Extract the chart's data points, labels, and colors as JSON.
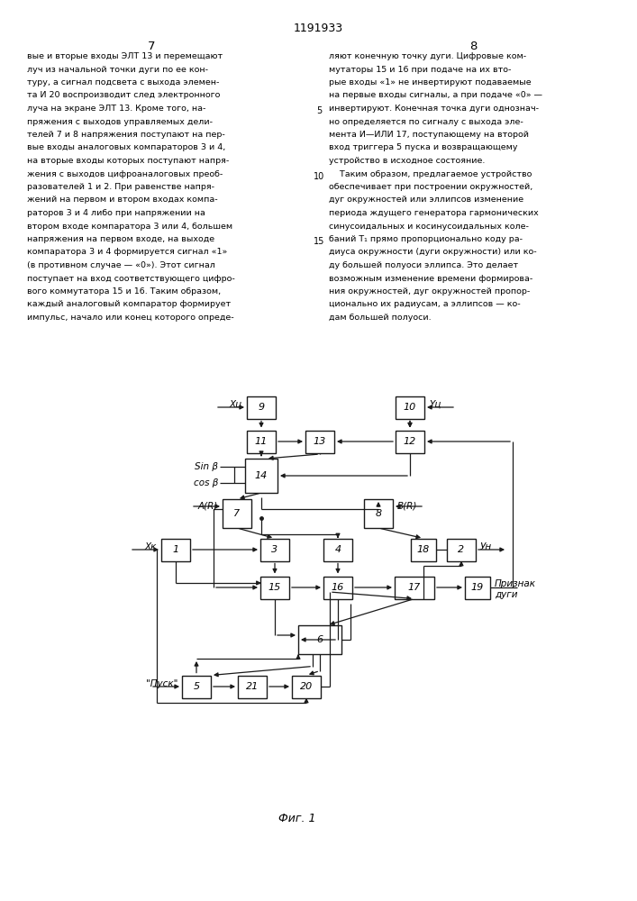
{
  "page_title": "1191933",
  "col_left_num": "7",
  "col_right_num": "8",
  "left_text_lines": [
    "вые и вторые входы ЭЛТ 13 и перемещают",
    "луч из начальной точки дуги по ее кон-",
    "туру, а сигнал подсвета с выхода элемен-",
    "та И 20 воспроизводит след электронного",
    "луча на экране ЭЛТ 13. Кроме того, на-",
    "пряжения с выходов управляемых дели-",
    "телей 7 и 8 напряжения поступают на пер-",
    "вые входы аналоговых компараторов 3 и 4,",
    "на вторые входы которых поступают напря-",
    "жения с выходов цифроаналоговых преоб-",
    "разователей 1 и 2. При равенстве напря-",
    "жений на первом и втором входах компа-",
    "раторов 3 и 4 либо при напряжении на",
    "втором входе компаратора 3 или 4, большем",
    "напряжения на первом входе, на выходе",
    "компаратора 3 и 4 формируется сигнал «1»",
    "(в противном случае — «0»). Этот сигнал",
    "поступает на вход соответствующего цифро-",
    "вого коммутатора 15 и 16. Таким образом,",
    "каждый аналоговый компаратор формирует",
    "импульс, начало или конец которого опреде-"
  ],
  "right_text_lines": [
    "ляют конечную точку дуги. Цифровые ком-",
    "мутаторы 15 и 16 при подаче на их вто-",
    "рые входы «1» не инвертируют подаваемые",
    "на первые входы сигналы, а при подаче «0» —",
    "инвертируют. Конечная точка дуги однознач-",
    "но определяется по сигналу с выхода эле-",
    "мента И—ИЛИ 17, поступающему на второй",
    "вход триггера 5 пуска и возвращающему",
    "устройство в исходное состояние.",
    "    Таким образом, предлагаемое устройство",
    "обеспечивает при построении окружностей,",
    "дуг окружностей или эллипсов изменение",
    "периода ждущего генератора гармонических",
    "синусоидальных и косинусоидальных коле-",
    "баний Т₁ прямо пропорционально коду ра-",
    "диуса окружности (дуги окружности) или ко-",
    "ду большей полуоси эллипса. Это делает",
    "возможным изменение времени формирова-",
    "ния окружностей, дуг окружностей пропор-",
    "ционально их радиусам, а эллипсов — ко-",
    "дам большей полуоси."
  ],
  "line_nums": [
    [
      "5",
      5
    ],
    [
      "10",
      10
    ],
    [
      "15",
      15
    ]
  ],
  "fig_caption": "Фиг. 1",
  "bg_color": "#ffffff",
  "text_color": "#000000",
  "diagram_color": "#1a1a1a"
}
